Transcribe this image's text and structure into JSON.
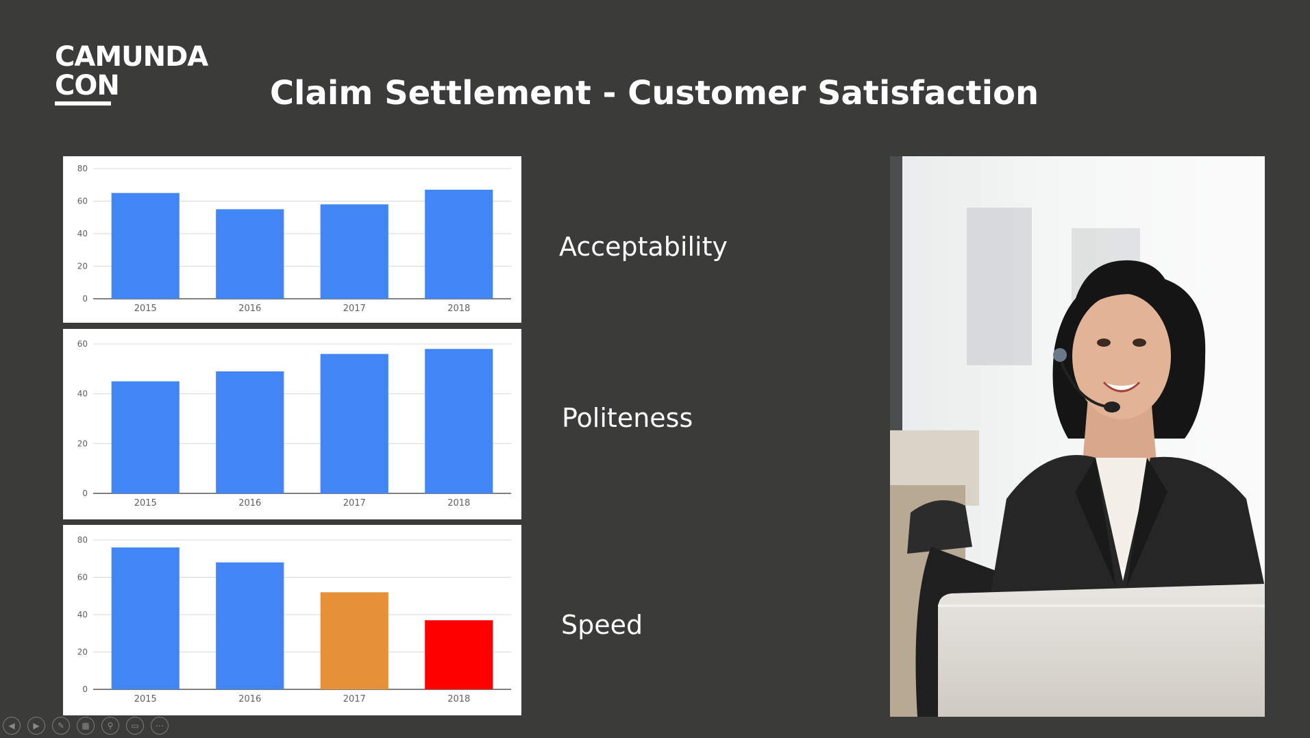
{
  "logo": {
    "line1": "CAMUNDA",
    "line2": "CON"
  },
  "slide": {
    "title": "Claim Settlement - Customer Satisfaction"
  },
  "labels": {
    "acceptability": "Acceptability",
    "politeness": "Politeness",
    "speed": "Speed"
  },
  "controls": [
    "previous-icon",
    "next-icon",
    "pen-icon",
    "slides-icon",
    "zoom-icon",
    "subtitles-icon",
    "more-icon"
  ],
  "colors": {
    "background": "#3b3b3a",
    "bar_blue": "#4285f4",
    "bar_orange": "#e69138",
    "bar_red": "#ff0000"
  },
  "chart_data": [
    {
      "type": "bar",
      "categories": [
        "2015",
        "2016",
        "2017",
        "2018"
      ],
      "values": [
        65,
        55,
        58,
        67
      ],
      "colors": [
        "#4285f4",
        "#4285f4",
        "#4285f4",
        "#4285f4"
      ],
      "yticks": [
        0,
        20,
        40,
        60,
        80
      ],
      "ylim": [
        0,
        80
      ],
      "grid": true
    },
    {
      "type": "bar",
      "categories": [
        "2015",
        "2016",
        "2017",
        "2018"
      ],
      "values": [
        45,
        49,
        56,
        58
      ],
      "colors": [
        "#4285f4",
        "#4285f4",
        "#4285f4",
        "#4285f4"
      ],
      "yticks": [
        0,
        20,
        40,
        60
      ],
      "ylim": [
        0,
        60
      ],
      "grid": true
    },
    {
      "type": "bar",
      "categories": [
        "2015",
        "2016",
        "2017",
        "2018"
      ],
      "values": [
        76,
        68,
        52,
        37
      ],
      "colors": [
        "#4285f4",
        "#4285f4",
        "#e69138",
        "#ff0000"
      ],
      "yticks": [
        0,
        20,
        40,
        60,
        80
      ],
      "ylim": [
        0,
        80
      ],
      "grid": true
    }
  ]
}
